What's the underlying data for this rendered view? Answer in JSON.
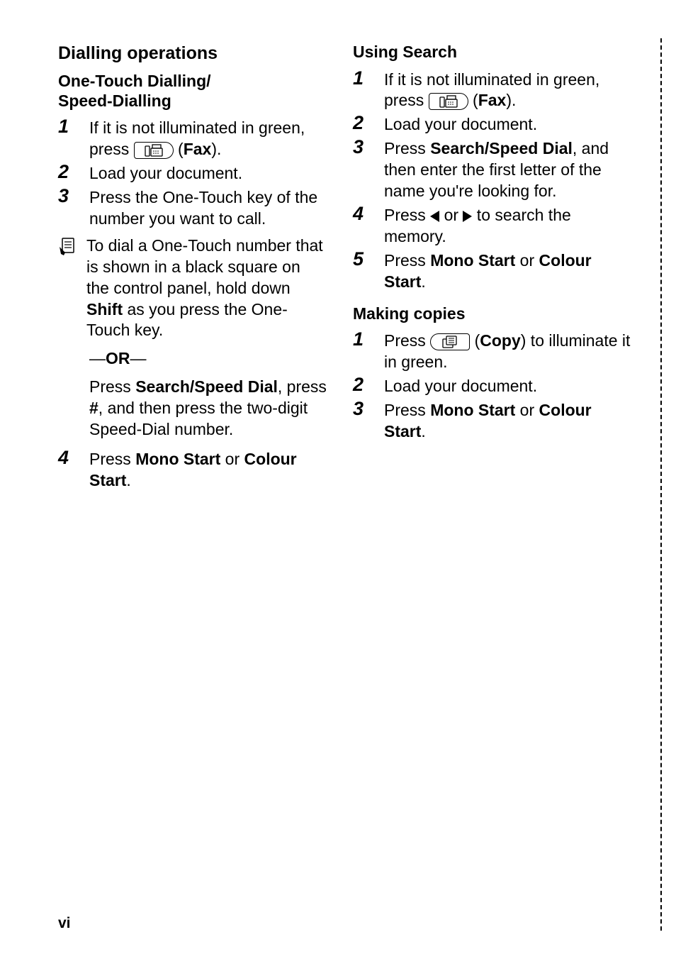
{
  "left": {
    "section": "Dialling operations",
    "subsection": "One-Touch Dialling/\nSpeed-Dialling",
    "steps_a": [
      {
        "n": "1",
        "html": "If it is not illuminated in green, press {FAX} (<b>Fax</b>)."
      },
      {
        "n": "2",
        "html": "Load your document."
      },
      {
        "n": "3",
        "html": "Press the One-Touch key of the number you want to call."
      }
    ],
    "note": "To dial a One-Touch number that is shown in a black square on the control panel, hold down <b>Shift</b> as you press the One-Touch key.",
    "or_label": "—<b>OR</b>—",
    "or_body": "Press <b>Search/Speed Dial</b>, press <b>#</b>, and then press the two-digit Speed-Dial number.",
    "steps_b": [
      {
        "n": "4",
        "html": "Press <b>Mono Start</b> or <b>Colour Start</b>."
      }
    ]
  },
  "right": {
    "subsection1": "Using Search",
    "steps1": [
      {
        "n": "1",
        "html": "If it is not illuminated in green, press {FAX} (<b>Fax</b>)."
      },
      {
        "n": "2",
        "html": "Load your document."
      },
      {
        "n": "3",
        "html": "Press <b>Search/Speed Dial</b>, and then enter the first letter of the name you're looking for."
      },
      {
        "n": "4",
        "html": "Press {TRIL} or {TRIR} to search the memory."
      },
      {
        "n": "5",
        "html": "Press <b>Mono Start</b> or <b>Colour Start</b>."
      }
    ],
    "subsection2": "Making copies",
    "steps2": [
      {
        "n": "1",
        "html": "Press {COPY} (<b>Copy</b>) to illuminate it in green."
      },
      {
        "n": "2",
        "html": "Load your document."
      },
      {
        "n": "3",
        "html": "Press <b>Mono Start</b> or <b>Colour Start</b>."
      }
    ]
  },
  "page_number": "vi"
}
